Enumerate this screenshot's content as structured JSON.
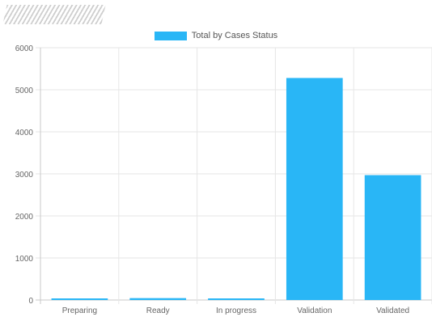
{
  "chart_data": {
    "type": "bar",
    "categories": [
      "Preparing",
      "Ready",
      "In progress",
      "Validation",
      "Validated"
    ],
    "series": [
      {
        "name": "Total by Cases Status",
        "values": [
          10,
          45,
          15,
          5280,
          2970
        ],
        "color": "#29b6f6"
      }
    ],
    "ylim": [
      0,
      6000
    ],
    "yticks": [
      0,
      1000,
      2000,
      3000,
      4000,
      5000,
      6000
    ],
    "grid": true,
    "legend": "top-center"
  },
  "colors": {
    "bar": "#29b6f6",
    "grid": "#e6e6e6",
    "axis": "#c8c8c8"
  },
  "header": {
    "logo_icon": "hatch-logo-icon"
  }
}
